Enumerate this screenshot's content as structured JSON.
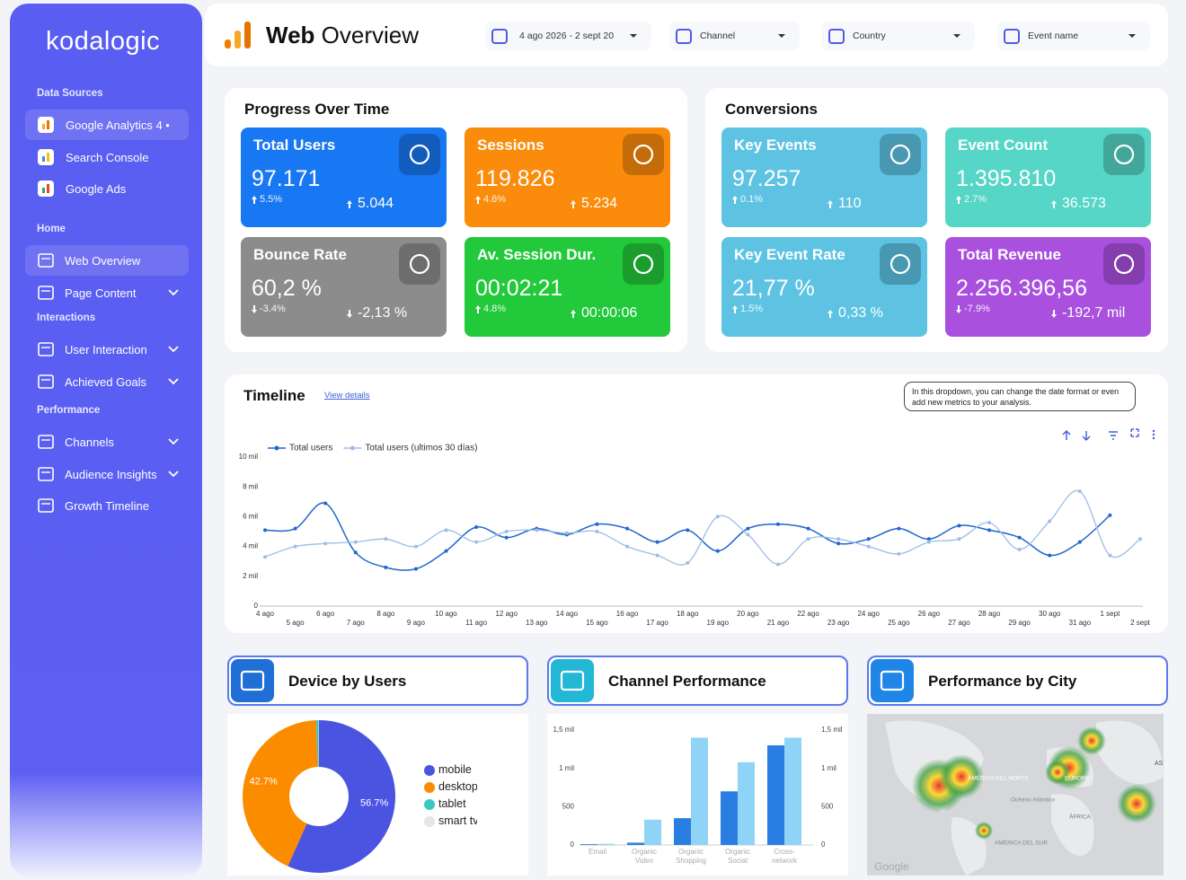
{
  "sidebar": {
    "brand": "kodalogic",
    "sections": [
      {
        "title": "Data Sources",
        "items": [
          {
            "label": "Google Analytics 4 •",
            "active": true
          },
          {
            "label": "Search Console"
          },
          {
            "label": "Google Ads"
          }
        ]
      },
      {
        "title": "Home",
        "items": [
          {
            "label": "Web Overview",
            "active": true
          },
          {
            "label": "Page Content",
            "expandable": true
          }
        ]
      },
      {
        "title": "Interactions",
        "items": [
          {
            "label": "User Interaction",
            "expandable": true
          },
          {
            "label": "Achieved Goals",
            "expandable": true
          }
        ]
      },
      {
        "title": "Performance",
        "items": [
          {
            "label": "Channels",
            "expandable": true
          },
          {
            "label": "Audience Insights",
            "expandable": true
          },
          {
            "label": "Growth Timeline"
          }
        ]
      }
    ]
  },
  "header": {
    "title_bold": "Web",
    "title_rest": "Overview",
    "filters": [
      "4 ago 2026 - 2 sept 20",
      "Channel",
      "Country",
      "Event name"
    ]
  },
  "progress": {
    "title": "Progress Over Time",
    "cards": [
      {
        "label": "Total Users",
        "value": "97.171",
        "change": "5.5%",
        "delta": "5.044",
        "trend": "up",
        "color": "#1877f2"
      },
      {
        "label": "Sessions",
        "value": "119.826",
        "change": "4.6%",
        "delta": "5.234",
        "trend": "up",
        "color": "#fb8b0a"
      },
      {
        "label": "Bounce Rate",
        "value": "60,2 %",
        "change": "-3.4%",
        "delta": "-2,13 %",
        "trend": "down",
        "color": "#8c8c8c"
      },
      {
        "label": "Av. Session Dur.",
        "value": "00:02:21",
        "change": "4.8%",
        "delta": "00:00:06",
        "trend": "up",
        "color": "#22c93a"
      }
    ]
  },
  "conversions": {
    "title": "Conversions",
    "cards": [
      {
        "label": "Key Events",
        "value": "97.257",
        "change": "0.1%",
        "delta": "110",
        "trend": "up",
        "color": "#5ec3e3"
      },
      {
        "label": "Event Count",
        "value": "1.395.810",
        "change": "2.7%",
        "delta": "36.573",
        "trend": "up",
        "color": "#55d6c6"
      },
      {
        "label": "Key Event Rate",
        "value": "21,77 %",
        "change": "1.5%",
        "delta": "0,33 %",
        "trend": "up",
        "color": "#5ec3e3"
      },
      {
        "label": "Total Revenue",
        "value": "2.256.396,56",
        "change": "-7.9%",
        "delta": "-192,7 mil",
        "trend": "down",
        "color": "#a950de"
      }
    ]
  },
  "timeline": {
    "title": "Timeline",
    "link": "View details",
    "note": "In this dropdown, you can change the date format or even add new metrics to your analysis.",
    "chart_data": {
      "type": "line",
      "categories": [
        "4 ago",
        "5 ago",
        "6 ago",
        "7 ago",
        "8 ago",
        "9 ago",
        "10 ago",
        "11 ago",
        "12 ago",
        "13 ago",
        "14 ago",
        "15 ago",
        "16 ago",
        "17 ago",
        "18 ago",
        "19 ago",
        "20 ago",
        "21 ago",
        "22 ago",
        "23 ago",
        "24 ago",
        "25 ago",
        "26 ago",
        "27 ago",
        "28 ago",
        "29 ago",
        "30 ago",
        "31 ago",
        "1 sept",
        "2 sept"
      ],
      "series": [
        {
          "name": "Total users",
          "color": "#2066cc",
          "values": [
            5100,
            5200,
            6900,
            3600,
            2600,
            2500,
            3700,
            5300,
            4600,
            5200,
            4800,
            5500,
            5200,
            4300,
            5100,
            3700,
            5200,
            5500,
            5200,
            4200,
            4500,
            5200,
            4500,
            5400,
            5100,
            4600,
            3400,
            4300,
            6100,
            null
          ]
        },
        {
          "name": "Total users (ultimos 30 días)",
          "color": "#9dbde8",
          "values": [
            3300,
            4000,
            4200,
            4300,
            4500,
            4000,
            5100,
            4300,
            5000,
            5100,
            4900,
            5000,
            4000,
            3400,
            2900,
            6000,
            4800,
            2800,
            4500,
            4500,
            4000,
            3500,
            4300,
            4500,
            5600,
            3800,
            5700,
            7700,
            3400,
            4500
          ]
        }
      ],
      "ylim": [
        0,
        10000
      ],
      "yticks": [
        0,
        {
          "value": 2000,
          "label": "2 mil"
        },
        {
          "value": 4000,
          "label": "4 mil"
        },
        {
          "value": 6000,
          "label": "6 mil"
        },
        {
          "value": 8000,
          "label": "8 mil"
        },
        {
          "value": 10000,
          "label": "10 mil"
        }
      ],
      "grid": false
    }
  },
  "devices": {
    "title": "Device by Users",
    "chart_data": {
      "type": "pie",
      "categories": [
        "mobile",
        "desktop",
        "tablet",
        "smart tv"
      ],
      "values": [
        56.7,
        42.7,
        0.5,
        0.1
      ],
      "value_labels": [
        "56.7%",
        "42.7%",
        null,
        null
      ],
      "colors": [
        "#4a54e1",
        "#fb8c00",
        "#3cc7c0",
        "#e6e6e6"
      ]
    }
  },
  "channels": {
    "title": "Channel Performance",
    "chart_data": {
      "type": "bar",
      "categories": [
        "Email",
        "Organic Video",
        "Organic Shopping",
        "Organic Social",
        "Cross-network"
      ],
      "series": [
        {
          "color": "#2a7ee2",
          "values": [
            10,
            30,
            350,
            700,
            1300
          ]
        },
        {
          "color": "#8fd4f6",
          "values": [
            15,
            330,
            1400,
            1080,
            1400
          ],
          "axis": "y2"
        }
      ],
      "ylim": [
        0,
        1500
      ],
      "yticks": [
        0,
        500,
        {
          "value": 1000,
          "label": "1 mil"
        },
        {
          "value": 1500,
          "label": "1,5 mil"
        }
      ],
      "y2lim": [
        0,
        1500
      ],
      "y2ticks": [
        0,
        500,
        {
          "value": 1000,
          "label": "1 mil"
        },
        {
          "value": 1500,
          "label": "1,5 mil"
        }
      ]
    }
  },
  "city": {
    "title": "Performance by City",
    "labels": [
      "AMÉRICA DEL NORTE",
      "EUROPA",
      "Océano Atlántico",
      "ÁFRICA",
      "AMÉRICA DEL SUR",
      "AS",
      "Google"
    ]
  }
}
